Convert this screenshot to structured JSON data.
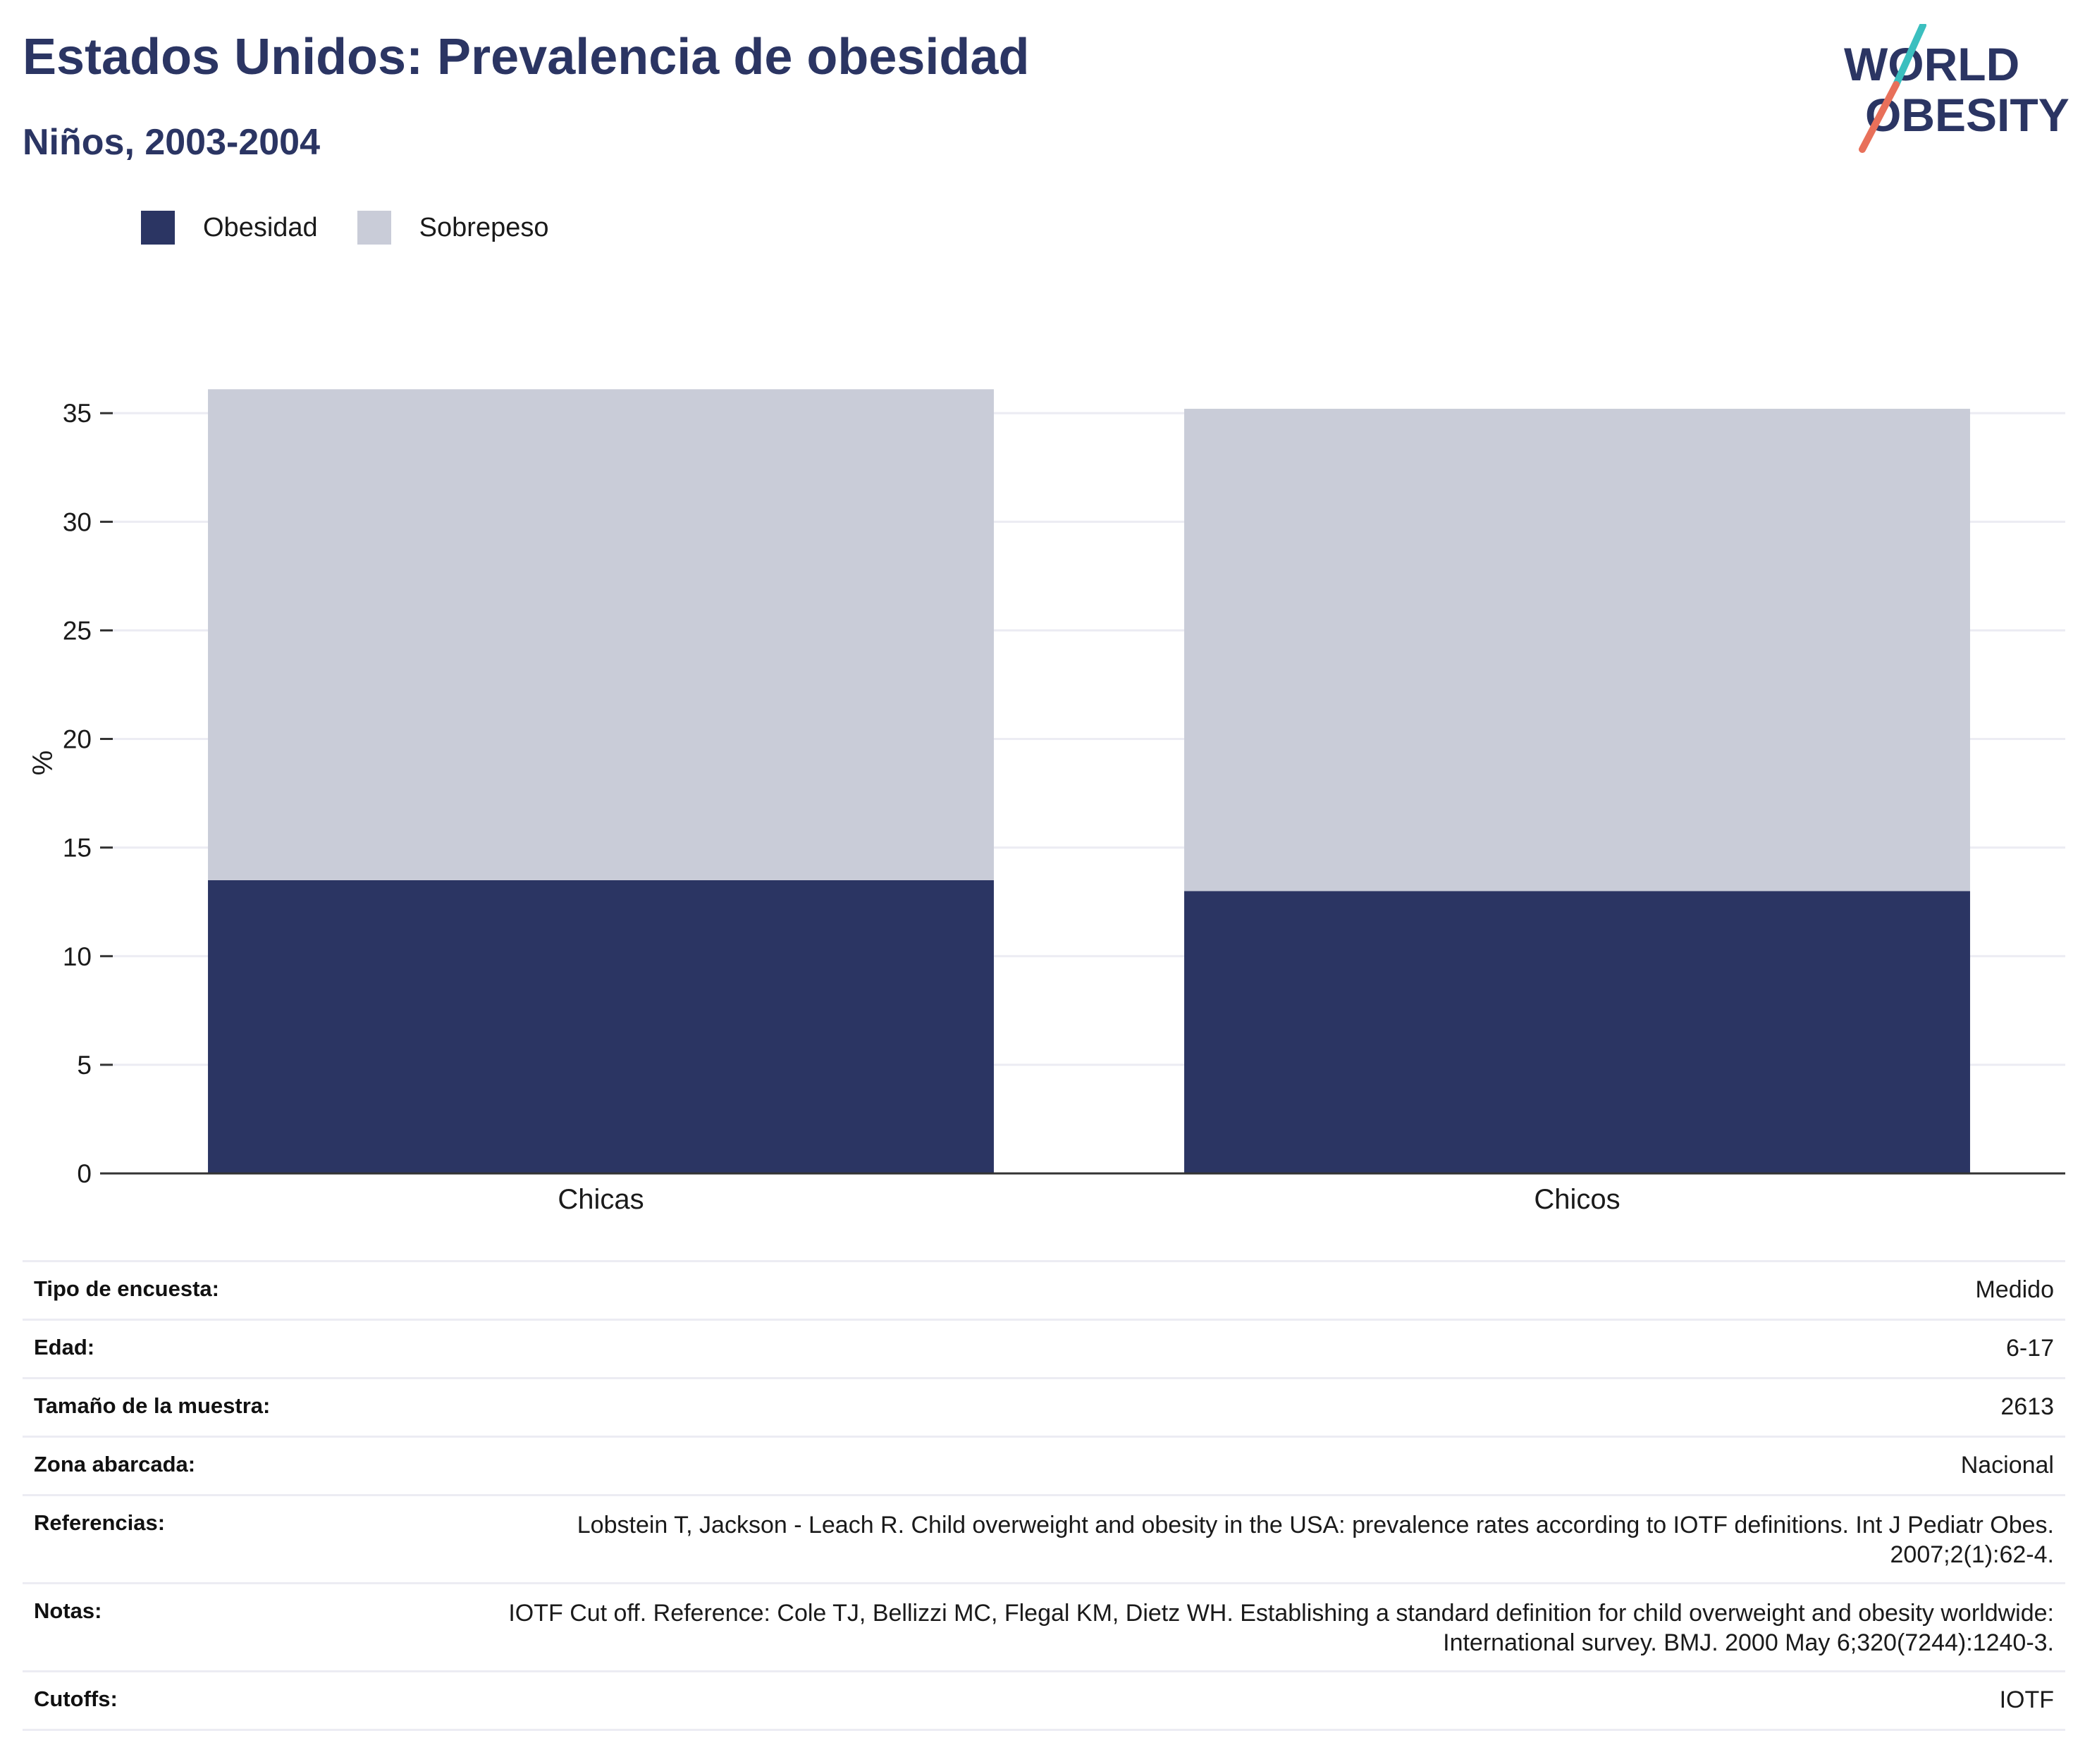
{
  "header": {
    "title": "Estados Unidos: Prevalencia de obesidad",
    "subtitle": "Niños, 2003-2004"
  },
  "logo": {
    "line1": "WORLD",
    "line2": "OBESITY",
    "slash_color_top": "#3bbfbf",
    "slash_color_bottom": "#e8705a"
  },
  "colors": {
    "title": "#2b3563",
    "obesity": "#2b3563",
    "overweight": "#c9ccd8",
    "grid": "#ececf3",
    "axis": "#333333"
  },
  "legend": [
    {
      "label": "Obesidad",
      "color": "#2b3563"
    },
    {
      "label": "Sobrepeso",
      "color": "#c9ccd8"
    }
  ],
  "chart_data": {
    "type": "bar",
    "stacked": true,
    "categories": [
      "Chicas",
      "Chicos"
    ],
    "series": [
      {
        "name": "Obesidad",
        "color": "#2b3563",
        "values": [
          13.5,
          13.0
        ]
      },
      {
        "name": "Sobrepeso",
        "color": "#c9ccd8",
        "values": [
          22.6,
          22.2
        ]
      }
    ],
    "ylabel": "%",
    "xlabel": "",
    "ylim": [
      0,
      36.5
    ],
    "yticks": [
      0,
      5,
      10,
      15,
      20,
      25,
      30,
      35
    ],
    "grid": true,
    "legend_position": "top-left"
  },
  "info_table": [
    {
      "label": "Tipo de encuesta:",
      "value": "Medido"
    },
    {
      "label": "Edad:",
      "value": "6-17"
    },
    {
      "label": "Tamaño de la muestra:",
      "value": "2613"
    },
    {
      "label": "Zona abarcada:",
      "value": "Nacional"
    },
    {
      "label": "Referencias:",
      "value": "Lobstein T, Jackson - Leach R. Child overweight and obesity in the USA: prevalence rates according to IOTF definitions. Int J Pediatr Obes. 2007;2(1):62-4."
    },
    {
      "label": "Notas:",
      "value": "IOTF Cut off. Reference: Cole TJ, Bellizzi MC, Flegal KM, Dietz WH. Establishing a standard definition for child overweight and obesity worldwide: International survey. BMJ. 2000 May 6;320(7244):1240-3."
    },
    {
      "label": "Cutoffs:",
      "value": "IOTF"
    }
  ]
}
